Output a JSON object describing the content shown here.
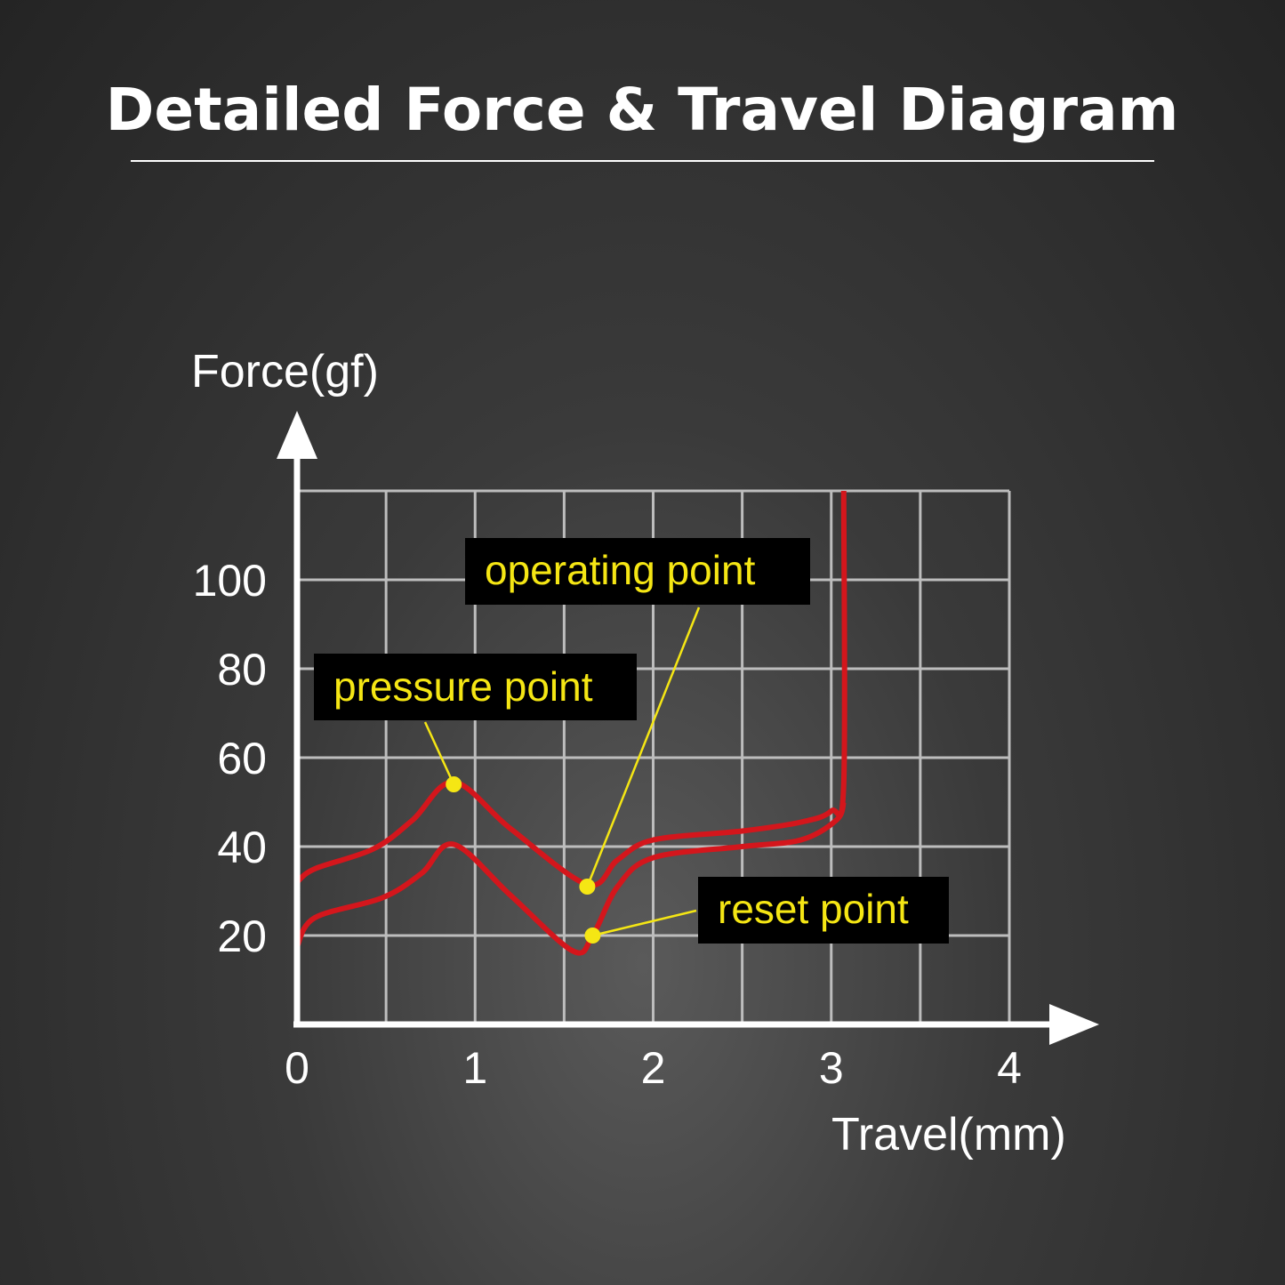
{
  "chart_data": {
    "type": "line",
    "title": "Detailed Force & Travel Diagram",
    "xlabel": "Travel(mm)",
    "ylabel": "Force(gf)",
    "xlim": [
      0,
      4
    ],
    "ylim": [
      0,
      120
    ],
    "xticks": [
      "0",
      "1",
      "2",
      "3",
      "4"
    ],
    "yticks": [
      "20",
      "40",
      "60",
      "80",
      "100"
    ],
    "grid": true,
    "grid_step": {
      "x": 0.5,
      "y": 20
    },
    "colors": {
      "curve": "#d4161c",
      "annotation": "#f5e614",
      "grid": "#bdbdbd",
      "axis": "#ffffff"
    },
    "series": [
      {
        "x": [
          0,
          0.1,
          0.43,
          0.65,
          0.88,
          1.2,
          1.63,
          1.8,
          2.0,
          2.5,
          2.83,
          3.0,
          3.07,
          3.07
        ],
        "y": [
          32,
          35,
          39.5,
          46,
          54.5,
          44,
          31.5,
          37,
          41.5,
          43.5,
          45.5,
          48,
          54,
          120
        ]
      },
      {
        "x": [
          0,
          0.1,
          0.48,
          0.7,
          0.88,
          1.2,
          1.55,
          1.66,
          1.8,
          2.0,
          2.5,
          2.83,
          3.03,
          3.07
        ],
        "y": [
          17.5,
          24,
          28.5,
          34,
          40.5,
          29,
          16.5,
          20,
          31,
          37.5,
          40,
          41.5,
          46,
          50
        ]
      }
    ],
    "annotations": [
      {
        "text": "pressure point",
        "x": 0.88,
        "y": 54
      },
      {
        "text": "operating point",
        "x": 1.63,
        "y": 31
      },
      {
        "text": "reset point",
        "x": 1.66,
        "y": 20
      }
    ]
  }
}
